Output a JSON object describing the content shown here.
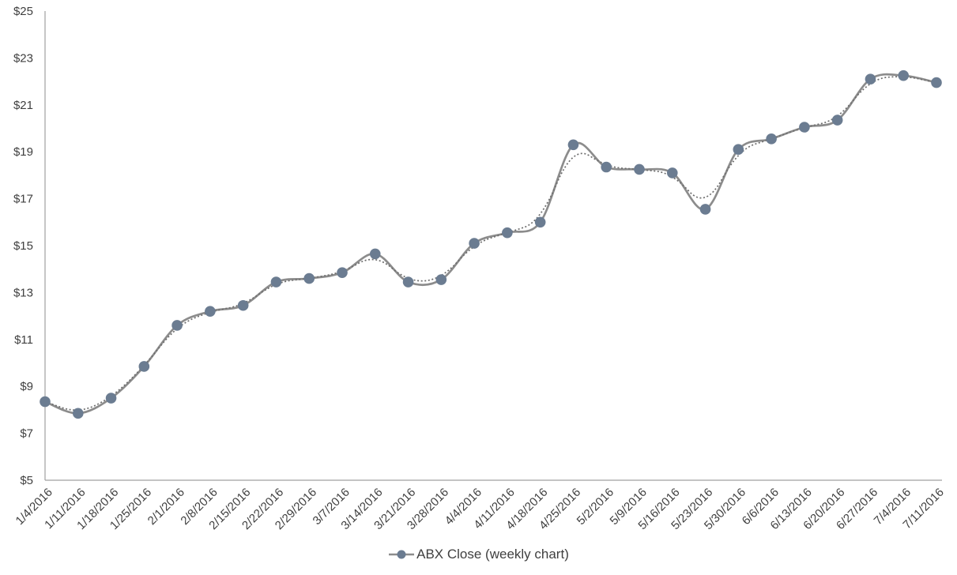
{
  "chart_data": {
    "type": "line",
    "title": "",
    "legend": "ABX Close (weekly chart)",
    "xlabel": "",
    "ylabel": "",
    "grid": false,
    "legend_position": "bottom-center",
    "ylim": [
      5,
      25
    ],
    "ytick_step": 2,
    "ytick_labels": [
      "$5",
      "$7",
      "$9",
      "$11",
      "$13",
      "$15",
      "$17",
      "$19",
      "$21",
      "$23",
      "$25"
    ],
    "x": [
      "1/4/2016",
      "1/11/2016",
      "1/18/2016",
      "1/25/2016",
      "2/1/2016",
      "2/8/2016",
      "2/15/2016",
      "2/22/2016",
      "2/29/2016",
      "3/7/2016",
      "3/14/2016",
      "3/21/2016",
      "3/28/2016",
      "4/4/2016",
      "4/11/2016",
      "4/18/2016",
      "4/25/2016",
      "5/2/2016",
      "5/9/2016",
      "5/16/2016",
      "5/23/2016",
      "5/30/2016",
      "6/6/2016",
      "6/13/2016",
      "6/20/2016",
      "6/27/2016",
      "7/4/2016",
      "7/11/2016"
    ],
    "series": [
      {
        "name": "ABX Close (weekly chart)",
        "marker": "circle",
        "line_style": "solid-smoothed",
        "values": [
          8.35,
          7.85,
          8.5,
          9.85,
          11.6,
          12.2,
          12.45,
          13.45,
          13.6,
          13.85,
          14.65,
          13.45,
          13.55,
          15.1,
          15.55,
          16.0,
          19.3,
          18.35,
          18.25,
          18.1,
          16.55,
          19.1,
          19.55,
          20.05,
          20.35,
          22.1,
          22.25,
          21.95
        ]
      }
    ],
    "trendline": {
      "style": "dotted",
      "follows_series": "ABX Close (weekly chart)",
      "note": "dotted trend hugging the series, cutting corners at peaks and valleys"
    },
    "colors": {
      "line": "#8c8c8c",
      "marker": "#6b7c91",
      "dotted": "#6e6e6e",
      "axis": "#a0a0a0",
      "tick_text": "#404040",
      "legend_text": "#3f3f3f",
      "background": "#ffffff"
    }
  }
}
